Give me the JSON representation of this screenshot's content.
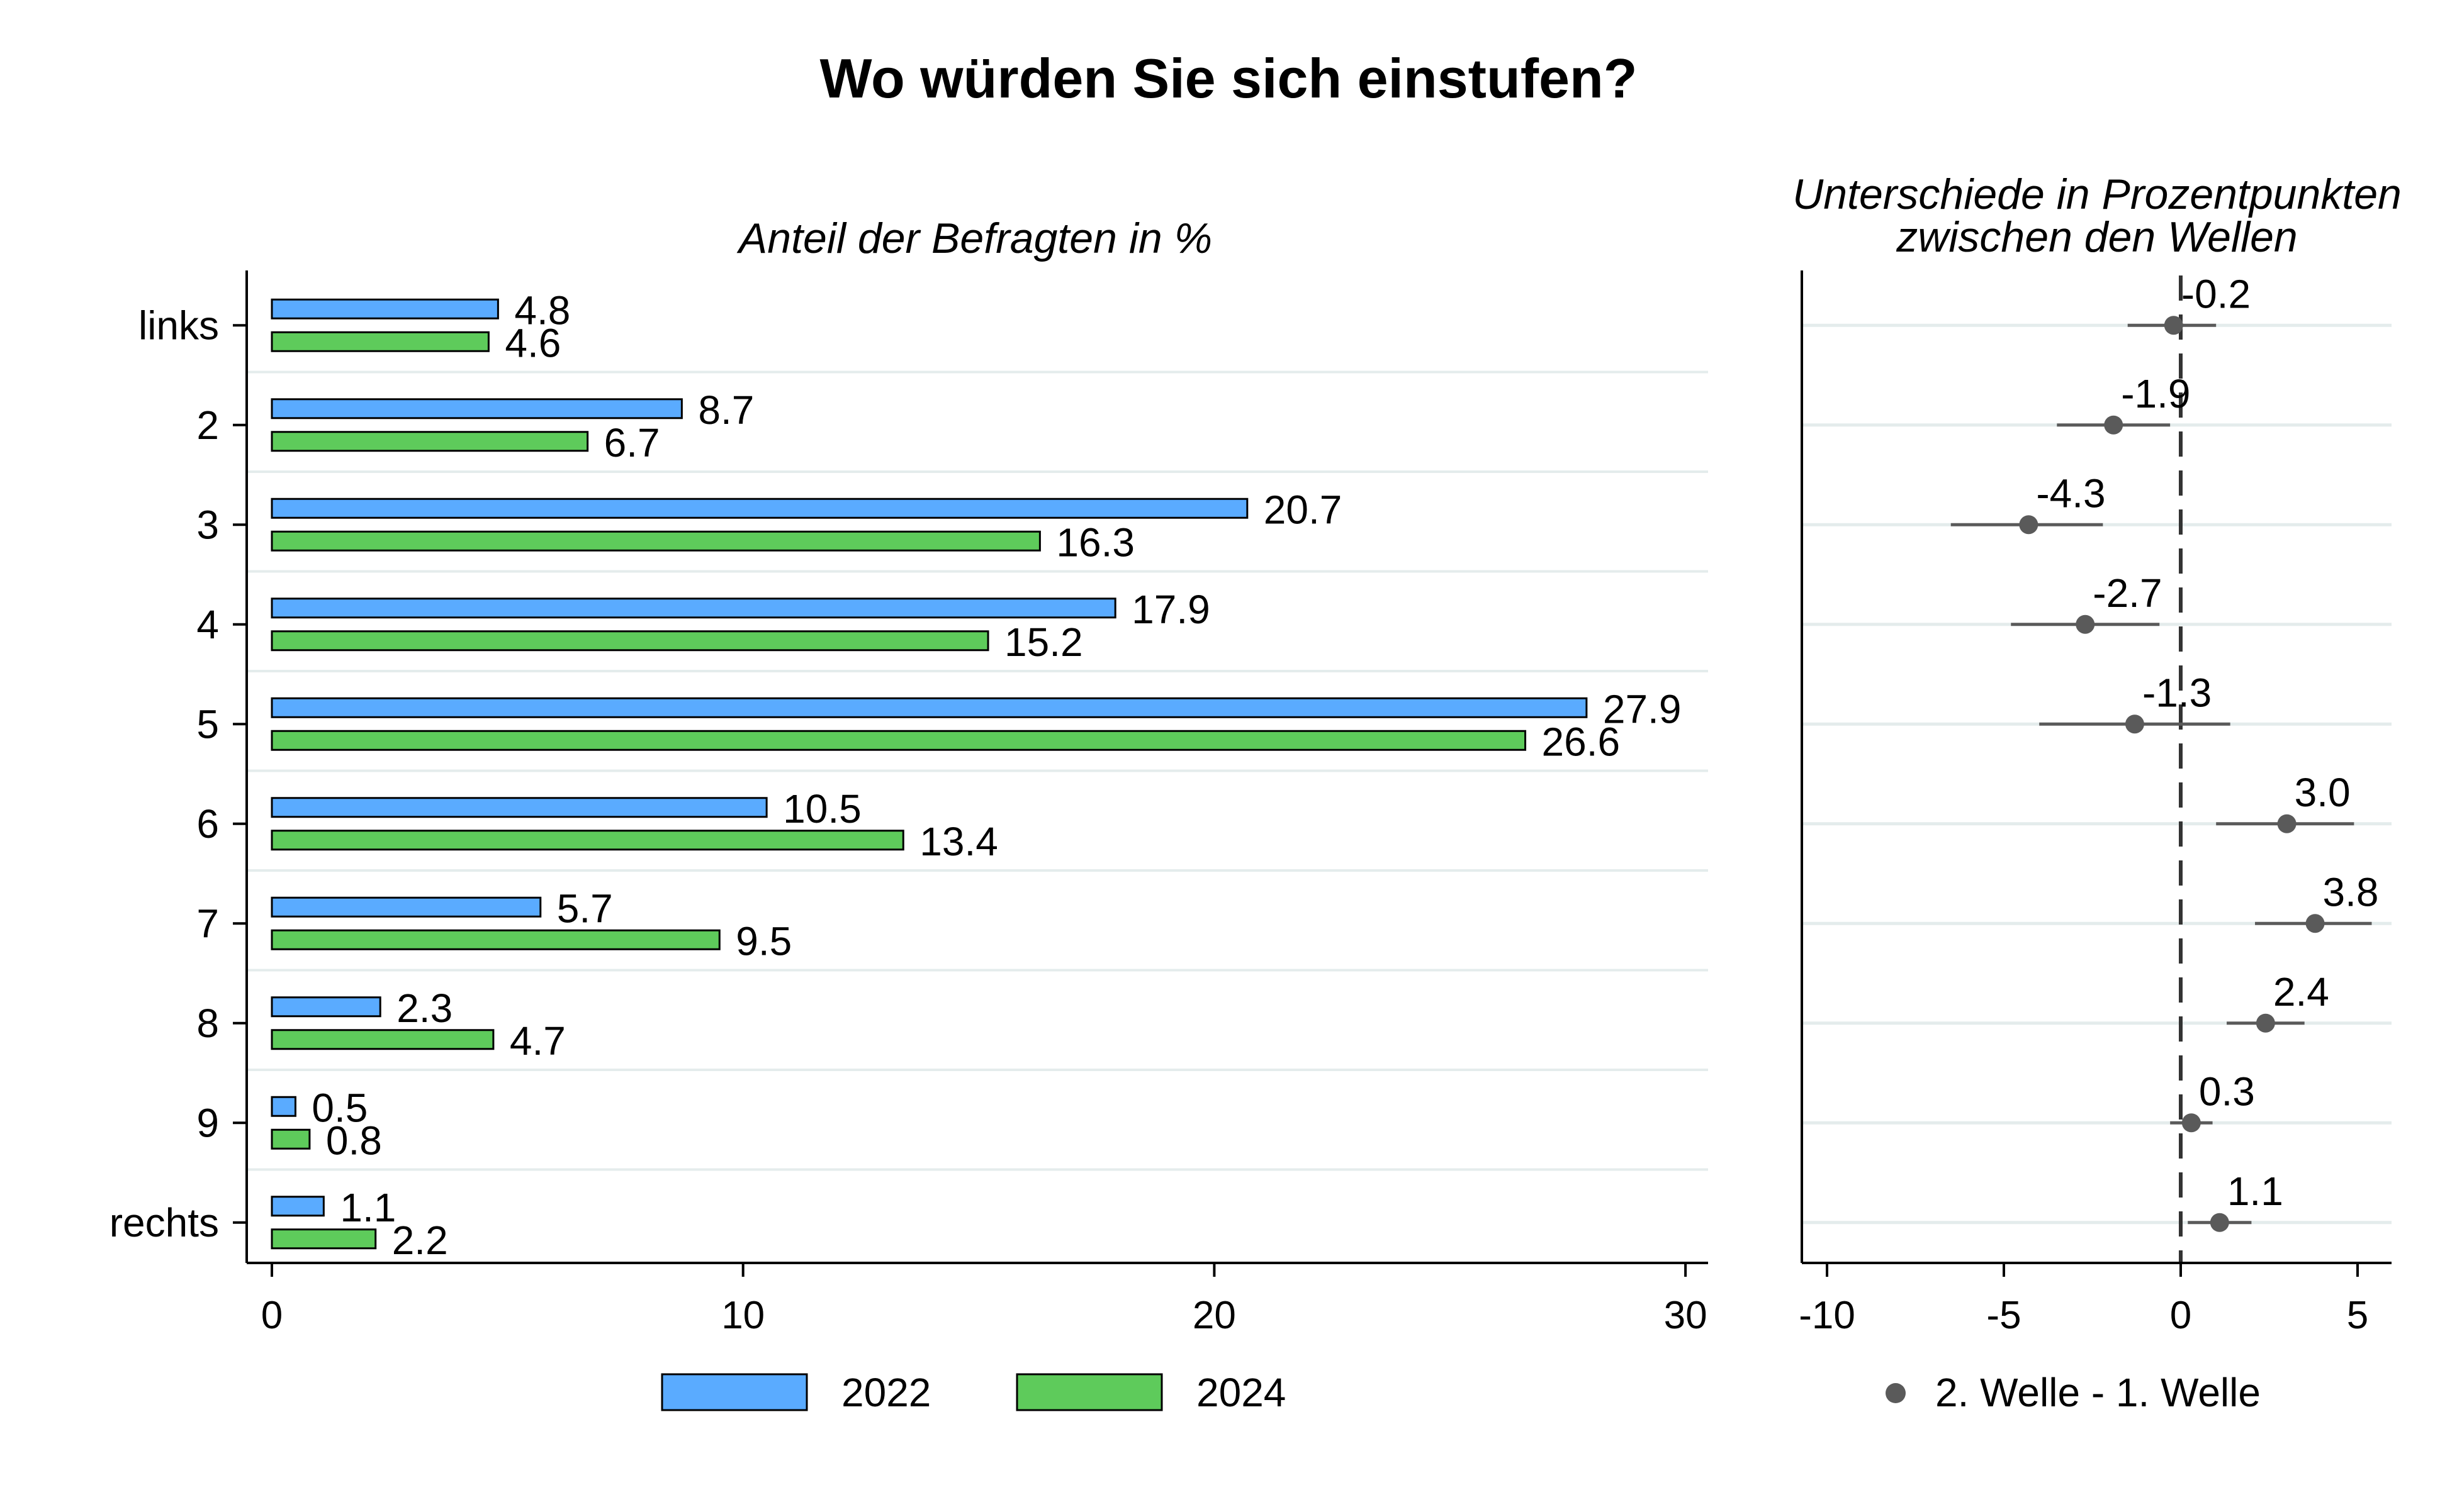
{
  "title": "Wo würden Sie sich einstufen?",
  "colors": {
    "series_2022": "#5aabff",
    "series_2024": "#5ecb5b",
    "diff_marker": "#5a5a5a",
    "gridline": "#e4ecec"
  },
  "chart_data": [
    {
      "type": "bar",
      "orientation": "horizontal",
      "title": "Anteil der Befragten in %",
      "categories": [
        "links",
        "2",
        "3",
        "4",
        "5",
        "6",
        "7",
        "8",
        "9",
        "rechts"
      ],
      "series": [
        {
          "name": "2022",
          "values": [
            4.8,
            8.7,
            20.7,
            17.9,
            27.9,
            10.5,
            5.7,
            2.3,
            0.5,
            1.1
          ]
        },
        {
          "name": "2024",
          "values": [
            4.6,
            6.7,
            16.3,
            15.2,
            26.6,
            13.4,
            9.5,
            4.7,
            0.8,
            2.2
          ]
        }
      ],
      "xlim": [
        0,
        30
      ],
      "xticks": [
        "0",
        "10",
        "20",
        "30"
      ],
      "legend_position": "bottom"
    },
    {
      "type": "scatter",
      "title": "Unterschiede in Prozentpunkten zwischen den Wellen",
      "title_lines": [
        "Unterschiede in Prozentpunkten",
        "zwischen den Wellen"
      ],
      "categories": [
        "links",
        "2",
        "3",
        "4",
        "5",
        "6",
        "7",
        "8",
        "9",
        "rechts"
      ],
      "series": [
        {
          "name": "2. Welle - 1. Welle",
          "values": [
            -0.2,
            -1.9,
            -4.3,
            -2.7,
            -1.3,
            3.0,
            3.8,
            2.4,
            0.3,
            1.1
          ],
          "labels": [
            "-0.2",
            "-1.9",
            "-4.3",
            "-2.7",
            "-1.3",
            "3.0",
            "3.8",
            "2.4",
            "0.3",
            "1.1"
          ],
          "ci_low": [
            -1.5,
            -3.5,
            -6.5,
            -4.8,
            -4.0,
            1.0,
            2.1,
            1.3,
            -0.3,
            0.2
          ],
          "ci_high": [
            1.0,
            -0.3,
            -2.2,
            -0.6,
            1.4,
            4.9,
            5.4,
            3.5,
            0.9,
            2.0
          ]
        }
      ],
      "xlim": [
        -11,
        6
      ],
      "xticks": [
        "-10",
        "-5",
        "0",
        "5"
      ],
      "reference_line": 0,
      "legend_position": "bottom"
    }
  ]
}
